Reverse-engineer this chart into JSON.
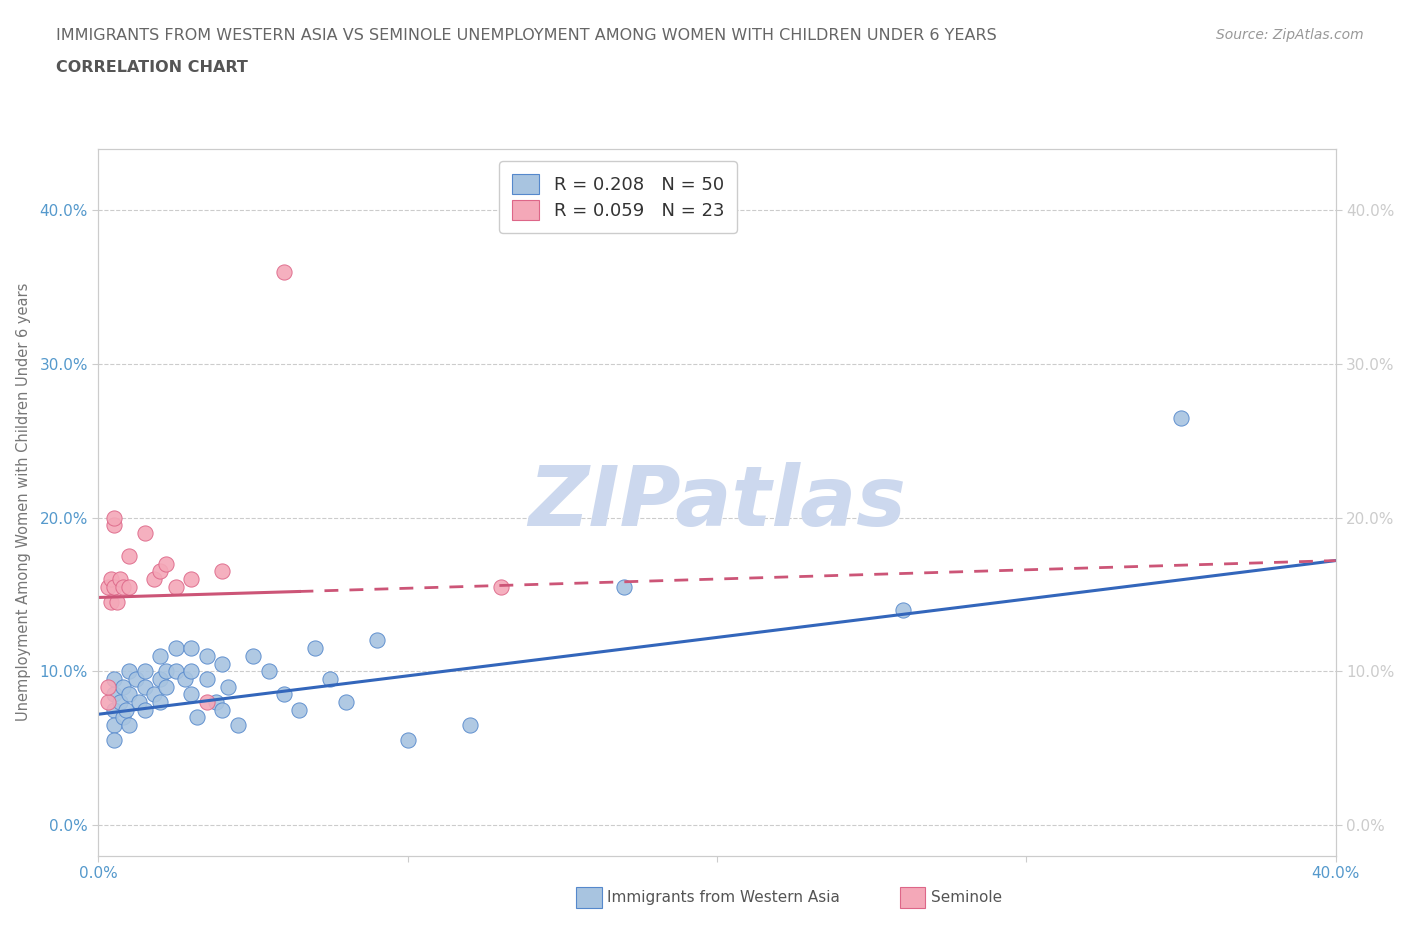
{
  "title_line1": "IMMIGRANTS FROM WESTERN ASIA VS SEMINOLE UNEMPLOYMENT AMONG WOMEN WITH CHILDREN UNDER 6 YEARS",
  "title_line2": "CORRELATION CHART",
  "source_text": "Source: ZipAtlas.com",
  "ylabel": "Unemployment Among Women with Children Under 6 years",
  "xlim": [
    0.0,
    0.4
  ],
  "ylim": [
    -0.02,
    0.44
  ],
  "yticks": [
    0.0,
    0.1,
    0.2,
    0.3,
    0.4
  ],
  "ytick_labels": [
    "0.0%",
    "10.0%",
    "20.0%",
    "30.0%",
    "40.0%"
  ],
  "xtick_labels_left": "0.0%",
  "xtick_labels_right": "40.0%",
  "blue_R": 0.208,
  "blue_N": 50,
  "pink_R": 0.059,
  "pink_N": 23,
  "blue_color": "#a8c4e0",
  "pink_color": "#f4a8b8",
  "blue_edge_color": "#5588cc",
  "pink_edge_color": "#dd6688",
  "blue_line_color": "#3366bb",
  "pink_line_color": "#cc5577",
  "watermark_text": "ZIPatlas",
  "watermark_color": "#ccd8ee",
  "legend_bottom_blue": "Immigrants from Western Asia",
  "legend_bottom_pink": "Seminole",
  "blue_scatter": [
    [
      0.005,
      0.075
    ],
    [
      0.005,
      0.065
    ],
    [
      0.005,
      0.055
    ],
    [
      0.005,
      0.085
    ],
    [
      0.005,
      0.095
    ],
    [
      0.007,
      0.08
    ],
    [
      0.008,
      0.07
    ],
    [
      0.008,
      0.09
    ],
    [
      0.009,
      0.075
    ],
    [
      0.01,
      0.1
    ],
    [
      0.01,
      0.085
    ],
    [
      0.01,
      0.065
    ],
    [
      0.012,
      0.095
    ],
    [
      0.013,
      0.08
    ],
    [
      0.015,
      0.1
    ],
    [
      0.015,
      0.09
    ],
    [
      0.015,
      0.075
    ],
    [
      0.018,
      0.085
    ],
    [
      0.02,
      0.11
    ],
    [
      0.02,
      0.095
    ],
    [
      0.02,
      0.08
    ],
    [
      0.022,
      0.1
    ],
    [
      0.022,
      0.09
    ],
    [
      0.025,
      0.115
    ],
    [
      0.025,
      0.1
    ],
    [
      0.028,
      0.095
    ],
    [
      0.03,
      0.115
    ],
    [
      0.03,
      0.1
    ],
    [
      0.03,
      0.085
    ],
    [
      0.032,
      0.07
    ],
    [
      0.035,
      0.11
    ],
    [
      0.035,
      0.095
    ],
    [
      0.038,
      0.08
    ],
    [
      0.04,
      0.105
    ],
    [
      0.04,
      0.075
    ],
    [
      0.042,
      0.09
    ],
    [
      0.045,
      0.065
    ],
    [
      0.05,
      0.11
    ],
    [
      0.055,
      0.1
    ],
    [
      0.06,
      0.085
    ],
    [
      0.065,
      0.075
    ],
    [
      0.07,
      0.115
    ],
    [
      0.075,
      0.095
    ],
    [
      0.08,
      0.08
    ],
    [
      0.09,
      0.12
    ],
    [
      0.1,
      0.055
    ],
    [
      0.12,
      0.065
    ],
    [
      0.17,
      0.155
    ],
    [
      0.26,
      0.14
    ],
    [
      0.35,
      0.265
    ]
  ],
  "pink_scatter": [
    [
      0.003,
      0.08
    ],
    [
      0.003,
      0.09
    ],
    [
      0.003,
      0.155
    ],
    [
      0.004,
      0.16
    ],
    [
      0.004,
      0.145
    ],
    [
      0.005,
      0.195
    ],
    [
      0.005,
      0.2
    ],
    [
      0.005,
      0.155
    ],
    [
      0.006,
      0.145
    ],
    [
      0.007,
      0.16
    ],
    [
      0.008,
      0.155
    ],
    [
      0.01,
      0.175
    ],
    [
      0.01,
      0.155
    ],
    [
      0.015,
      0.19
    ],
    [
      0.018,
      0.16
    ],
    [
      0.02,
      0.165
    ],
    [
      0.022,
      0.17
    ],
    [
      0.025,
      0.155
    ],
    [
      0.03,
      0.16
    ],
    [
      0.035,
      0.08
    ],
    [
      0.04,
      0.165
    ],
    [
      0.06,
      0.36
    ],
    [
      0.13,
      0.155
    ]
  ],
  "blue_line_x0": 0.0,
  "blue_line_y0": 0.072,
  "blue_line_x1": 0.4,
  "blue_line_y1": 0.172,
  "pink_line_x0": 0.0,
  "pink_line_y0": 0.148,
  "pink_line_x1": 0.4,
  "pink_line_y1": 0.172
}
